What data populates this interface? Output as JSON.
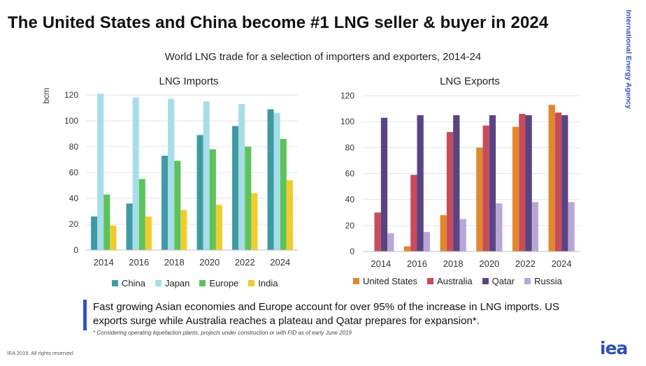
{
  "title": "The United States and China become #1 LNG seller & buyer in 2024",
  "org_name": "International Energy Agency",
  "subtitle": "World LNG trade for a selection of importers and exporters, 2014-24",
  "note": "Fast growing Asian economies and Europe account for over 95% of the increase in LNG imports. US exports surge while Australia reaches a plateau and Qatar prepares for expansion*.",
  "footnote": "* Considering operating liquefaction plants, projects under construction or with FID as of early June 2019",
  "copyright": "IEA 2019. All rights reserved.",
  "logo_text": "iea",
  "chart_data": [
    {
      "type": "bar",
      "title": "LNG Imports",
      "ylabel": "bcm",
      "xlabel": "",
      "categories": [
        "2014",
        "2016",
        "2018",
        "2020",
        "2022",
        "2024"
      ],
      "yticks": [
        0,
        20,
        40,
        60,
        80,
        100,
        120
      ],
      "ylim": [
        0,
        120
      ],
      "legend_position": "bottom",
      "grid": true,
      "series": [
        {
          "name": "China",
          "color": "#3e9aa3",
          "values": [
            26,
            36,
            73,
            89,
            96,
            109
          ]
        },
        {
          "name": "Japan",
          "color": "#a6dde9",
          "values": [
            121,
            118,
            117,
            115,
            113,
            106
          ]
        },
        {
          "name": "Europe",
          "color": "#5cc35a",
          "values": [
            43,
            55,
            69,
            78,
            80,
            86
          ]
        },
        {
          "name": "India",
          "color": "#f2cc2e",
          "values": [
            19,
            26,
            31,
            35,
            44,
            54
          ]
        }
      ]
    },
    {
      "type": "bar",
      "title": "LNG Exports",
      "ylabel": "",
      "xlabel": "",
      "categories": [
        "2014",
        "2016",
        "2018",
        "2020",
        "2022",
        "2024"
      ],
      "yticks": [
        0,
        20,
        40,
        60,
        80,
        100,
        120
      ],
      "ylim": [
        0,
        120
      ],
      "legend_position": "bottom",
      "grid": true,
      "series": [
        {
          "name": "United States",
          "color": "#e0882f",
          "values": [
            0,
            4,
            28,
            80,
            96,
            113
          ]
        },
        {
          "name": "Australia",
          "color": "#c94c5a",
          "values": [
            30,
            59,
            92,
            97,
            106,
            107
          ]
        },
        {
          "name": "Qatar",
          "color": "#594483",
          "values": [
            103,
            105,
            105,
            105,
            105,
            105
          ]
        },
        {
          "name": "Russia",
          "color": "#b9a6d6",
          "values": [
            14,
            15,
            25,
            37,
            38,
            38
          ]
        }
      ]
    }
  ]
}
